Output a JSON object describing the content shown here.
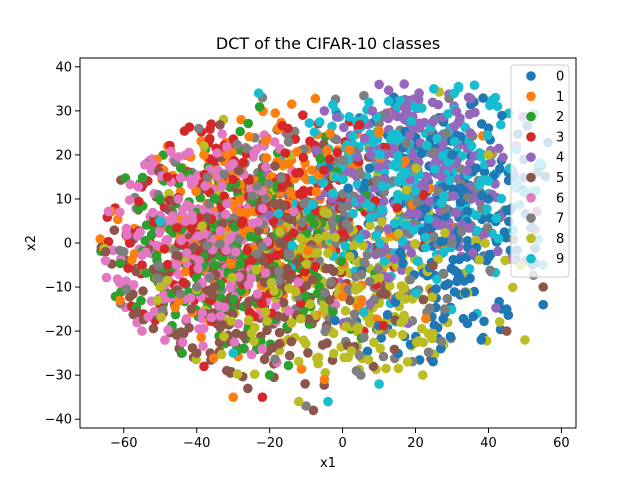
{
  "chart_data": {
    "type": "scatter",
    "title": "DCT of the CIFAR-10 classes",
    "xlabel": "x1",
    "ylabel": "x2",
    "xlim": [
      -72,
      64
    ],
    "ylim": [
      -42,
      42
    ],
    "xticks": [
      -60,
      -40,
      -20,
      0,
      20,
      40,
      60
    ],
    "yticks": [
      -40,
      -30,
      -20,
      -10,
      0,
      10,
      20,
      30,
      40
    ],
    "grid": false,
    "legend_position": "top-right",
    "series": [
      {
        "name": "0",
        "color": "#1f77b4",
        "center": [
          30,
          5
        ],
        "spread": [
          14,
          16
        ],
        "values": [
          [
            55,
            -14
          ],
          [
            45,
            -15
          ],
          [
            38,
            -22
          ],
          [
            52,
            -5
          ],
          [
            40,
            10
          ],
          [
            30,
            20
          ]
        ]
      },
      {
        "name": "1",
        "color": "#ff7f0e",
        "center": [
          -20,
          8
        ],
        "spread": [
          22,
          14
        ],
        "values": [
          [
            -61,
            -13
          ],
          [
            -38,
            20
          ],
          [
            -30,
            -35
          ],
          [
            -5,
            -31
          ],
          [
            10,
            25
          ],
          [
            -50,
            5
          ]
        ]
      },
      {
        "name": "2",
        "color": "#2ca02c",
        "center": [
          -30,
          0
        ],
        "spread": [
          18,
          12
        ],
        "values": [
          [
            -44,
            -25
          ],
          [
            -50,
            10
          ],
          [
            -20,
            -30
          ],
          [
            -10,
            -12
          ],
          [
            -35,
            -5
          ]
        ]
      },
      {
        "name": "3",
        "color": "#d62728",
        "center": [
          -25,
          5
        ],
        "spread": [
          20,
          13
        ],
        "values": [
          [
            -55,
            -5
          ],
          [
            -38,
            -28
          ],
          [
            -22,
            -35
          ],
          [
            15,
            8
          ],
          [
            -48,
            15
          ],
          [
            -15,
            26
          ]
        ]
      },
      {
        "name": "4",
        "color": "#9467bd",
        "center": [
          20,
          15
        ],
        "spread": [
          15,
          12
        ],
        "values": [
          [
            10,
            36
          ],
          [
            35,
            25
          ],
          [
            5,
            10
          ],
          [
            -5,
            30
          ]
        ]
      },
      {
        "name": "5",
        "color": "#8c564b",
        "center": [
          -30,
          -10
        ],
        "spread": [
          20,
          14
        ],
        "values": [
          [
            -65,
            -2
          ],
          [
            -40,
            -25
          ],
          [
            -26,
            -33
          ],
          [
            -8,
            -38
          ],
          [
            45,
            -20
          ],
          [
            55,
            -10
          ]
        ]
      },
      {
        "name": "6",
        "color": "#e377c2",
        "center": [
          -40,
          0
        ],
        "spread": [
          14,
          12
        ],
        "values": [
          [
            -65,
            -4
          ],
          [
            -55,
            -20
          ],
          [
            -30,
            18
          ],
          [
            -25,
            -8
          ],
          [
            -45,
            10
          ]
        ]
      },
      {
        "name": "7",
        "color": "#7f7f7f",
        "center": [
          -5,
          5
        ],
        "spread": [
          25,
          15
        ],
        "values": [
          [
            -60,
            -2
          ],
          [
            -22,
            33
          ],
          [
            -10,
            -37
          ],
          [
            5,
            -30
          ],
          [
            30,
            0
          ],
          [
            -40,
            -10
          ]
        ]
      },
      {
        "name": "8",
        "color": "#bcbd22",
        "center": [
          0,
          -12
        ],
        "spread": [
          22,
          14
        ],
        "values": [
          [
            -50,
            -10
          ],
          [
            -12,
            -36
          ],
          [
            22,
            -30
          ],
          [
            50,
            -22
          ],
          [
            40,
            20
          ],
          [
            -38,
            22
          ]
        ]
      },
      {
        "name": "9",
        "color": "#17becf",
        "center": [
          20,
          15
        ],
        "spread": [
          16,
          12
        ],
        "values": [
          [
            -23,
            34
          ],
          [
            25,
            35
          ],
          [
            55,
            -5
          ],
          [
            -4,
            -36
          ],
          [
            10,
            -32
          ],
          [
            -30,
            -25
          ],
          [
            -50,
            5
          ]
        ]
      }
    ]
  }
}
